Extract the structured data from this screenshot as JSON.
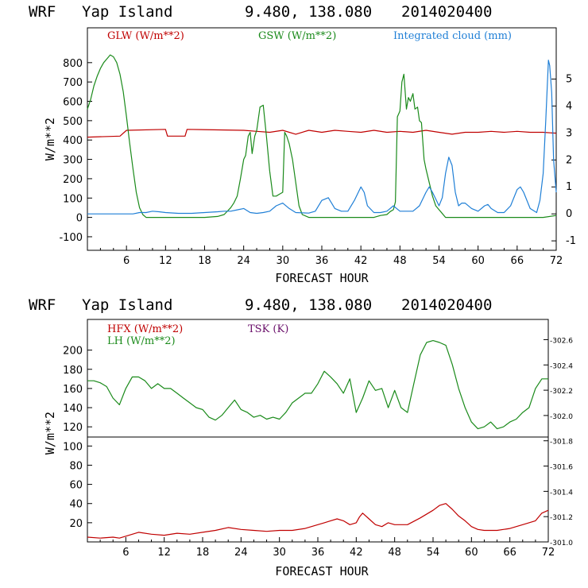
{
  "colors": {
    "red": "#c00000",
    "green": "#1a8a1a",
    "blue": "#1f7fd6",
    "purple": "#6a0f6a"
  },
  "chart_data": [
    {
      "type": "line",
      "title": {
        "model": "WRF",
        "location": "Yap Island",
        "coords": "9.480, 138.080",
        "init": "2014020400"
      },
      "xlabel": "FORECAST HOUR",
      "ylabel": "W/m**2",
      "xlim": [
        0,
        72
      ],
      "ylim": [
        -170,
        980
      ],
      "y2lim": [
        -1.35,
        6.9
      ],
      "xticks": [
        "6",
        "12",
        "18",
        "24",
        "30",
        "36",
        "42",
        "48",
        "54",
        "60",
        "66",
        "72"
      ],
      "yticks": [
        "-100",
        "0",
        "100",
        "200",
        "300",
        "400",
        "500",
        "600",
        "700",
        "800"
      ],
      "y2ticks": [
        "-1",
        "0",
        "1",
        "2",
        "3",
        "4",
        "5"
      ],
      "legend": [
        "GLW (W/m**2)",
        "GSW (W/m**2)",
        "Integrated cloud (mm)"
      ],
      "series": [
        {
          "name": "GLW (W/m**2)",
          "axis": "left",
          "color": "red",
          "x": [
            0,
            5,
            6,
            12,
            12.3,
            15,
            15.3,
            24,
            26,
            28,
            30,
            32,
            34,
            36,
            38,
            40,
            42,
            44,
            46,
            48,
            50,
            52,
            54,
            56,
            58,
            60,
            62,
            64,
            66,
            68,
            70,
            72
          ],
          "y": [
            415,
            420,
            450,
            455,
            420,
            420,
            455,
            450,
            445,
            440,
            450,
            430,
            450,
            440,
            450,
            445,
            440,
            450,
            440,
            445,
            440,
            450,
            440,
            430,
            440,
            440,
            445,
            440,
            445,
            440,
            440,
            435
          ]
        },
        {
          "name": "GSW (W/m**2)",
          "axis": "left",
          "color": "green",
          "x": [
            0,
            0.5,
            1,
            1.5,
            2,
            2.5,
            3,
            3.5,
            4,
            4.5,
            5,
            5.5,
            6,
            6.5,
            7,
            7.5,
            8,
            8.5,
            9,
            10,
            12,
            18,
            20,
            21,
            22,
            22.5,
            23,
            23.5,
            24,
            24.3,
            24.7,
            25,
            25.3,
            25.7,
            26,
            26.5,
            27,
            27.5,
            28,
            28.5,
            29,
            29.5,
            30,
            30.3,
            30.6,
            31,
            31.5,
            32,
            32.5,
            33,
            34,
            36,
            44,
            45,
            46,
            46.5,
            47,
            47.3,
            47.6,
            48,
            48.3,
            48.6,
            49,
            49.3,
            49.6,
            50,
            50.3,
            50.7,
            51,
            51.3,
            51.7,
            52,
            52.5,
            53,
            53.5,
            54,
            54.5,
            55,
            56,
            70,
            72
          ],
          "y": [
            560,
            610,
            680,
            730,
            770,
            800,
            820,
            840,
            830,
            800,
            740,
            650,
            520,
            380,
            250,
            130,
            50,
            15,
            0,
            0,
            0,
            0,
            5,
            15,
            50,
            75,
            110,
            200,
            300,
            320,
            420,
            440,
            330,
            420,
            450,
            570,
            580,
            420,
            240,
            110,
            110,
            120,
            130,
            440,
            420,
            380,
            300,
            180,
            60,
            15,
            0,
            0,
            0,
            10,
            15,
            30,
            40,
            80,
            520,
            550,
            700,
            740,
            560,
            620,
            600,
            640,
            560,
            570,
            500,
            490,
            300,
            250,
            180,
            110,
            60,
            40,
            20,
            0,
            0,
            0,
            10
          ]
        },
        {
          "name": "Integrated cloud (mm)",
          "axis": "right",
          "color": "blue",
          "x": [
            0,
            3,
            5,
            7,
            8,
            9,
            10,
            11,
            12,
            14,
            16,
            18,
            20,
            21,
            22,
            23,
            24,
            25,
            26,
            27,
            28,
            29,
            30,
            31,
            32,
            34,
            35,
            36,
            37,
            37.5,
            38,
            39,
            40,
            41,
            42,
            42.5,
            43,
            44,
            45,
            46,
            47,
            47.5,
            48,
            49,
            50,
            51,
            52,
            52.5,
            53,
            54,
            54.5,
            55,
            55.5,
            56,
            56.5,
            57,
            57.5,
            58,
            59,
            60,
            61,
            61.5,
            62,
            63,
            64,
            65,
            66,
            66.5,
            67,
            68,
            69,
            69.5,
            70,
            70.4,
            70.8,
            71,
            71.3,
            71.6,
            72
          ],
          "y": [
            0,
            0,
            0,
            0,
            0.05,
            0.05,
            0.1,
            0.08,
            0.05,
            0.02,
            0.02,
            0.05,
            0.08,
            0.1,
            0.1,
            0.15,
            0.2,
            0.05,
            0.02,
            0.05,
            0.1,
            0.3,
            0.4,
            0.2,
            0.05,
            0.03,
            0.1,
            0.5,
            0.6,
            0.4,
            0.2,
            0.1,
            0.1,
            0.5,
            1.0,
            0.8,
            0.3,
            0.05,
            0.05,
            0.1,
            0.3,
            0.2,
            0.1,
            0.1,
            0.1,
            0.3,
            0.8,
            1.0,
            0.8,
            0.3,
            0.6,
            1.5,
            2.1,
            1.8,
            0.8,
            0.3,
            0.4,
            0.4,
            0.2,
            0.1,
            0.3,
            0.35,
            0.2,
            0.05,
            0.05,
            0.3,
            0.9,
            1.0,
            0.8,
            0.2,
            0.05,
            0.5,
            1.5,
            3.5,
            5.7,
            5.5,
            4.5,
            2.0,
            0.8
          ]
        }
      ]
    },
    {
      "type": "line",
      "title": {
        "model": "WRF",
        "location": "Yap Island",
        "coords": "9.480, 138.080",
        "init": "2014020400"
      },
      "xlabel": "FORECAST HOUR",
      "ylabel": "W/m**2",
      "xlim": [
        0,
        72
      ],
      "ylim": [
        0,
        232
      ],
      "y2lim": [
        301.0,
        302.76
      ],
      "xticks": [
        "6",
        "12",
        "18",
        "24",
        "30",
        "36",
        "42",
        "48",
        "54",
        "60",
        "66",
        "72"
      ],
      "yticks": [
        "20",
        "40",
        "60",
        "80",
        "100",
        "120",
        "140",
        "160",
        "180",
        "200"
      ],
      "y2ticks": [
        "301.0",
        "301.2",
        "301.4",
        "301.6",
        "301.8",
        "302.0",
        "302.2",
        "302.4",
        "302.6"
      ],
      "legend": [
        "HFX (W/m**2)",
        "LH  (W/m**2)",
        "TSK (K)"
      ],
      "series": [
        {
          "name": "HFX (W/m**2)",
          "axis": "left",
          "color": "red",
          "x": [
            0,
            2,
            4,
            5,
            6,
            8,
            10,
            12,
            14,
            16,
            18,
            20,
            22,
            24,
            26,
            28,
            30,
            32,
            34,
            36,
            37,
            38,
            39,
            40,
            41,
            42,
            42.5,
            43,
            44,
            45,
            46,
            47,
            48,
            50,
            52,
            54,
            55,
            56,
            57,
            58,
            59,
            60,
            61,
            62,
            64,
            66,
            68,
            70,
            71,
            72
          ],
          "y": [
            5,
            4,
            5,
            4,
            6,
            10,
            8,
            7,
            9,
            8,
            10,
            12,
            15,
            13,
            12,
            11,
            12,
            12,
            14,
            18,
            20,
            22,
            24,
            22,
            18,
            20,
            26,
            30,
            24,
            18,
            16,
            20,
            18,
            18,
            25,
            33,
            38,
            40,
            34,
            27,
            22,
            16,
            13,
            12,
            12,
            14,
            18,
            22,
            30,
            33
          ]
        },
        {
          "name": "LH  (W/m**2)",
          "axis": "left",
          "color": "green",
          "x": [
            0,
            1,
            2,
            3,
            4,
            5,
            6,
            7,
            8,
            9,
            10,
            11,
            12,
            13,
            14,
            15,
            16,
            17,
            18,
            19,
            20,
            21,
            22,
            23,
            24,
            25,
            26,
            27,
            28,
            29,
            30,
            31,
            32,
            33,
            34,
            35,
            36,
            37,
            38,
            39,
            40,
            41,
            42,
            43,
            44,
            45,
            46,
            47,
            48,
            49,
            50,
            51,
            52,
            53,
            54,
            55,
            56,
            57,
            58,
            59,
            60,
            61,
            62,
            63,
            64,
            65,
            66,
            67,
            68,
            69,
            70,
            71,
            72
          ],
          "y": [
            168,
            168,
            166,
            162,
            150,
            143,
            160,
            172,
            172,
            168,
            160,
            165,
            160,
            160,
            155,
            150,
            145,
            140,
            138,
            130,
            127,
            132,
            140,
            148,
            138,
            135,
            130,
            132,
            128,
            130,
            128,
            135,
            145,
            150,
            155,
            155,
            165,
            178,
            172,
            165,
            155,
            170,
            135,
            150,
            168,
            158,
            160,
            140,
            158,
            140,
            135,
            165,
            195,
            208,
            210,
            208,
            205,
            185,
            160,
            140,
            125,
            118,
            120,
            125,
            118,
            120,
            125,
            128,
            135,
            140,
            160,
            170,
            170
          ]
        }
      ],
      "tsk_axis_line_value": 301.83
    }
  ]
}
